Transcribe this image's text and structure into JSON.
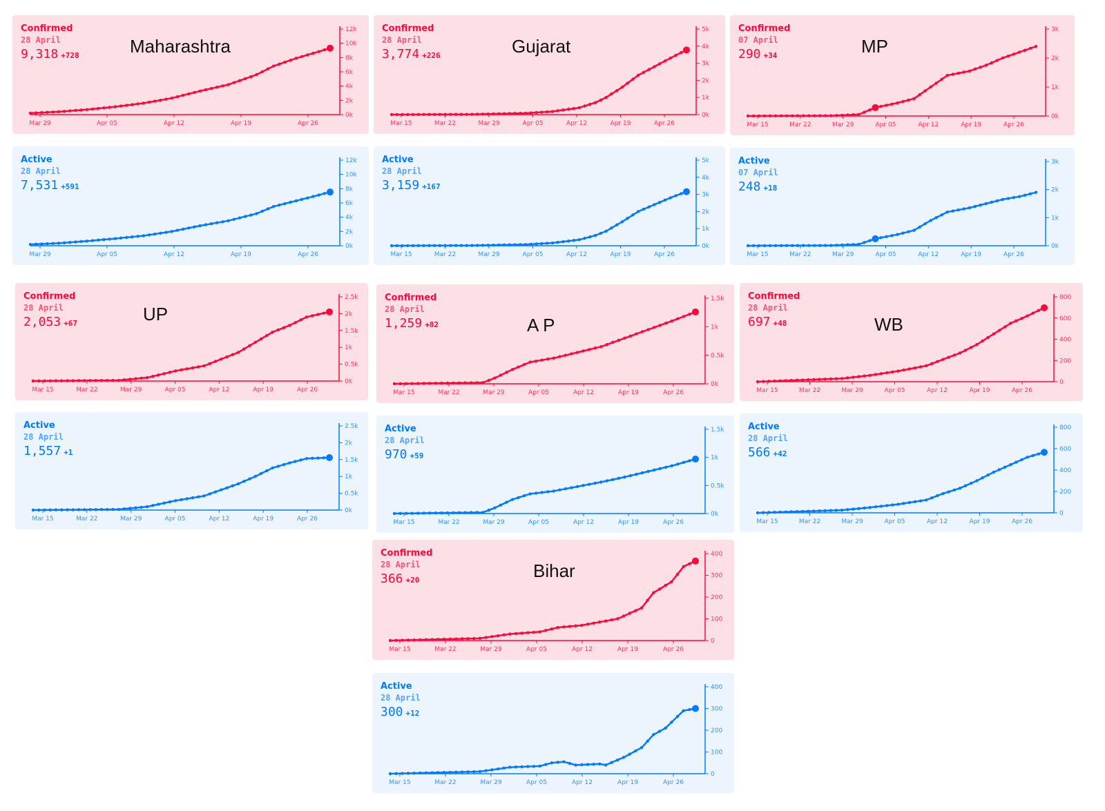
{
  "colors": {
    "confirmed": "#ff073a",
    "confirmed_bg": "#fde0e6",
    "active": "#007bff",
    "active_bg": "#ecf5fd"
  },
  "chart_data": [
    {
      "type": "line",
      "state": "Maharashtra",
      "label": "Confirmed",
      "date": "28 April",
      "value": "9,318",
      "delta": "+728",
      "x_ticks": [
        "Mar 29",
        "Apr 05",
        "Apr 12",
        "Apr 19",
        "Apr 26"
      ],
      "y_ticks": [
        "0k",
        "2k",
        "4k",
        "6k",
        "8k",
        "10k",
        "12k"
      ],
      "ylim": [
        0,
        12000
      ],
      "points": [
        [
          0,
          200
        ],
        [
          5,
          400
        ],
        [
          10,
          700
        ],
        [
          15,
          1100
        ],
        [
          20,
          1600
        ],
        [
          25,
          2300
        ],
        [
          30,
          3300
        ],
        [
          35,
          4200
        ],
        [
          40,
          5600
        ],
        [
          43,
          6800
        ],
        [
          47,
          7900
        ],
        [
          50,
          8600
        ],
        [
          53,
          9318
        ]
      ]
    },
    {
      "type": "line",
      "state": "Maharashtra",
      "label": "Active",
      "date": "28 April",
      "value": "7,531",
      "delta": "+591",
      "x_ticks": [
        "Mar 29",
        "Apr 05",
        "Apr 12",
        "Apr 19",
        "Apr 26"
      ],
      "y_ticks": [
        "0k",
        "2k",
        "4k",
        "6k",
        "8k",
        "10k",
        "12k"
      ],
      "ylim": [
        0,
        12000
      ],
      "points": [
        [
          0,
          180
        ],
        [
          5,
          350
        ],
        [
          10,
          650
        ],
        [
          15,
          1000
        ],
        [
          20,
          1400
        ],
        [
          25,
          2000
        ],
        [
          30,
          2800
        ],
        [
          35,
          3500
        ],
        [
          40,
          4500
        ],
        [
          43,
          5500
        ],
        [
          47,
          6300
        ],
        [
          50,
          6900
        ],
        [
          53,
          7531
        ]
      ]
    },
    {
      "type": "line",
      "state": "Gujarat",
      "label": "Confirmed",
      "date": "28 April",
      "value": "3,774",
      "delta": "+226",
      "x_ticks": [
        "Mar 15",
        "Mar 22",
        "Mar 29",
        "Apr 05",
        "Apr 12",
        "Apr 19",
        "Apr 26"
      ],
      "y_ticks": [
        "0k",
        "1k",
        "2k",
        "3k",
        "4k",
        "5k"
      ],
      "ylim": [
        0,
        5000
      ],
      "points": [
        [
          0,
          0
        ],
        [
          15,
          15
        ],
        [
          25,
          80
        ],
        [
          30,
          180
        ],
        [
          35,
          400
        ],
        [
          38,
          700
        ],
        [
          40,
          1000
        ],
        [
          43,
          1600
        ],
        [
          46,
          2300
        ],
        [
          49,
          2800
        ],
        [
          52,
          3300
        ],
        [
          55,
          3774
        ]
      ]
    },
    {
      "type": "line",
      "state": "Gujarat",
      "label": "Active",
      "date": "28 April",
      "value": "3,159",
      "delta": "+167",
      "x_ticks": [
        "Mar 15",
        "Mar 22",
        "Mar 29",
        "Apr 05",
        "Apr 12",
        "Apr 19",
        "Apr 26"
      ],
      "y_ticks": [
        "0k",
        "1k",
        "2k",
        "3k",
        "4k",
        "5k"
      ],
      "ylim": [
        0,
        5000
      ],
      "points": [
        [
          0,
          0
        ],
        [
          15,
          15
        ],
        [
          25,
          70
        ],
        [
          30,
          160
        ],
        [
          35,
          350
        ],
        [
          38,
          600
        ],
        [
          40,
          850
        ],
        [
          43,
          1400
        ],
        [
          46,
          2000
        ],
        [
          49,
          2400
        ],
        [
          52,
          2800
        ],
        [
          55,
          3159
        ]
      ]
    },
    {
      "type": "line",
      "state": "MP",
      "label": "Confirmed",
      "date": "07 April",
      "value": "290",
      "delta": "+34",
      "x_ticks": [
        "Mar 15",
        "Mar 22",
        "Mar 29",
        "Apr 05",
        "Apr 12",
        "Apr 19",
        "Apr 26"
      ],
      "y_ticks": [
        "0k",
        "1k",
        "2k",
        "3k"
      ],
      "ylim": [
        0,
        3000
      ],
      "points": [
        [
          0,
          0
        ],
        [
          15,
          10
        ],
        [
          20,
          50
        ],
        [
          23,
          290
        ],
        [
          27,
          450
        ],
        [
          30,
          600
        ],
        [
          33,
          1000
        ],
        [
          36,
          1400
        ],
        [
          40,
          1550
        ],
        [
          43,
          1750
        ],
        [
          46,
          2000
        ],
        [
          49,
          2200
        ],
        [
          52,
          2400
        ]
      ],
      "highlight": 3
    },
    {
      "type": "line",
      "state": "MP",
      "label": "Active",
      "date": "07 April",
      "value": "248",
      "delta": "+18",
      "x_ticks": [
        "Mar 15",
        "Mar 22",
        "Mar 29",
        "Apr 05",
        "Apr 12",
        "Apr 19",
        "Apr 26"
      ],
      "y_ticks": [
        "0k",
        "1k",
        "2k",
        "3k"
      ],
      "ylim": [
        0,
        3000
      ],
      "points": [
        [
          0,
          0
        ],
        [
          15,
          10
        ],
        [
          20,
          50
        ],
        [
          23,
          248
        ],
        [
          27,
          400
        ],
        [
          30,
          550
        ],
        [
          33,
          900
        ],
        [
          36,
          1200
        ],
        [
          40,
          1350
        ],
        [
          43,
          1500
        ],
        [
          46,
          1650
        ],
        [
          49,
          1750
        ],
        [
          52,
          1900
        ]
      ],
      "highlight": 3
    },
    {
      "type": "line",
      "state": "UP",
      "label": "Confirmed",
      "date": "28 April",
      "value": "2,053",
      "delta": "+67",
      "x_ticks": [
        "Mar 15",
        "Mar 22",
        "Mar 29",
        "Apr 05",
        "Apr 12",
        "Apr 19",
        "Apr 26"
      ],
      "y_ticks": [
        "0k",
        "0.5k",
        "1k",
        "1.5k",
        "2k",
        "2.5k"
      ],
      "ylim": [
        0,
        2500
      ],
      "points": [
        [
          0,
          0
        ],
        [
          15,
          20
        ],
        [
          20,
          100
        ],
        [
          25,
          300
        ],
        [
          30,
          450
        ],
        [
          33,
          650
        ],
        [
          36,
          850
        ],
        [
          39,
          1150
        ],
        [
          42,
          1450
        ],
        [
          45,
          1650
        ],
        [
          48,
          1900
        ],
        [
          52,
          2053
        ]
      ]
    },
    {
      "type": "line",
      "state": "UP",
      "label": "Active",
      "date": "28 April",
      "value": "1,557",
      "delta": "+1",
      "x_ticks": [
        "Mar 15",
        "Mar 22",
        "Mar 29",
        "Apr 05",
        "Apr 12",
        "Apr 19",
        "Apr 26"
      ],
      "y_ticks": [
        "0k",
        "0.5k",
        "1k",
        "1.5k",
        "2k",
        "2.5k"
      ],
      "ylim": [
        0,
        2500
      ],
      "points": [
        [
          0,
          0
        ],
        [
          15,
          20
        ],
        [
          20,
          100
        ],
        [
          25,
          280
        ],
        [
          30,
          420
        ],
        [
          33,
          600
        ],
        [
          36,
          780
        ],
        [
          39,
          1000
        ],
        [
          42,
          1250
        ],
        [
          45,
          1400
        ],
        [
          48,
          1530
        ],
        [
          52,
          1557
        ]
      ]
    },
    {
      "type": "line",
      "state": "A P",
      "label": "Confirmed",
      "date": "28 April",
      "value": "1,259",
      "delta": "+82",
      "x_ticks": [
        "Mar 15",
        "Mar 22",
        "Mar 29",
        "Apr 05",
        "Apr 12",
        "Apr 19",
        "Apr 26"
      ],
      "y_ticks": [
        "0k",
        "0.5k",
        "1k",
        "1.5k"
      ],
      "ylim": [
        0,
        1500
      ],
      "points": [
        [
          0,
          0
        ],
        [
          15,
          20
        ],
        [
          17,
          100
        ],
        [
          20,
          250
        ],
        [
          23,
          380
        ],
        [
          27,
          450
        ],
        [
          31,
          550
        ],
        [
          35,
          650
        ],
        [
          39,
          800
        ],
        [
          43,
          950
        ],
        [
          47,
          1100
        ],
        [
          51,
          1259
        ]
      ]
    },
    {
      "type": "line",
      "state": "A P",
      "label": "Active",
      "date": "28 April",
      "value": "970",
      "delta": "+59",
      "x_ticks": [
        "Mar 15",
        "Mar 22",
        "Mar 29",
        "Apr 05",
        "Apr 12",
        "Apr 19",
        "Apr 26"
      ],
      "y_ticks": [
        "0k",
        "0.5k",
        "1k",
        "1.5k"
      ],
      "ylim": [
        0,
        1500
      ],
      "points": [
        [
          0,
          0
        ],
        [
          15,
          20
        ],
        [
          17,
          100
        ],
        [
          20,
          250
        ],
        [
          23,
          350
        ],
        [
          27,
          400
        ],
        [
          31,
          480
        ],
        [
          35,
          560
        ],
        [
          39,
          650
        ],
        [
          43,
          750
        ],
        [
          47,
          850
        ],
        [
          51,
          970
        ]
      ]
    },
    {
      "type": "line",
      "state": "WB",
      "label": "Confirmed",
      "date": "28 April",
      "value": "697",
      "delta": "+48",
      "x_ticks": [
        "Mar 15",
        "Mar 22",
        "Mar 29",
        "Apr 05",
        "Apr 12",
        "Apr 19",
        "Apr 26"
      ],
      "y_ticks": [
        "0",
        "200",
        "400",
        "600",
        "800"
      ],
      "ylim": [
        0,
        800
      ],
      "points": [
        [
          0,
          0
        ],
        [
          15,
          30
        ],
        [
          20,
          60
        ],
        [
          25,
          100
        ],
        [
          30,
          150
        ],
        [
          33,
          210
        ],
        [
          36,
          270
        ],
        [
          39,
          350
        ],
        [
          42,
          450
        ],
        [
          45,
          550
        ],
        [
          48,
          620
        ],
        [
          51,
          697
        ]
      ]
    },
    {
      "type": "line",
      "state": "WB",
      "label": "Active",
      "date": "28 April",
      "value": "566",
      "delta": "+42",
      "x_ticks": [
        "Mar 15",
        "Mar 22",
        "Mar 29",
        "Apr 05",
        "Apr 12",
        "Apr 19",
        "Apr 26"
      ],
      "y_ticks": [
        "0",
        "200",
        "400",
        "600",
        "800"
      ],
      "ylim": [
        0,
        800
      ],
      "points": [
        [
          0,
          0
        ],
        [
          15,
          25
        ],
        [
          20,
          50
        ],
        [
          25,
          80
        ],
        [
          30,
          120
        ],
        [
          33,
          180
        ],
        [
          36,
          230
        ],
        [
          39,
          300
        ],
        [
          42,
          380
        ],
        [
          45,
          450
        ],
        [
          48,
          520
        ],
        [
          51,
          566
        ]
      ]
    },
    {
      "type": "line",
      "state": "Bihar",
      "label": "Confirmed",
      "date": "28 April",
      "value": "366",
      "delta": "+20",
      "x_ticks": [
        "Mar 15",
        "Mar 22",
        "Mar 29",
        "Apr 05",
        "Apr 12",
        "Apr 19",
        "Apr 26"
      ],
      "y_ticks": [
        "0",
        "100",
        "200",
        "300",
        "400"
      ],
      "ylim": [
        0,
        400
      ],
      "points": [
        [
          0,
          0
        ],
        [
          15,
          10
        ],
        [
          20,
          30
        ],
        [
          25,
          40
        ],
        [
          28,
          60
        ],
        [
          32,
          70
        ],
        [
          35,
          85
        ],
        [
          38,
          100
        ],
        [
          42,
          150
        ],
        [
          44,
          220
        ],
        [
          47,
          270
        ],
        [
          49,
          340
        ],
        [
          51,
          366
        ]
      ]
    },
    {
      "type": "line",
      "state": "Bihar",
      "label": "Active",
      "date": "28 April",
      "value": "300",
      "delta": "+12",
      "x_ticks": [
        "Mar 15",
        "Mar 22",
        "Mar 29",
        "Apr 05",
        "Apr 12",
        "Apr 19",
        "Apr 26"
      ],
      "y_ticks": [
        "0",
        "100",
        "200",
        "300",
        "400"
      ],
      "ylim": [
        0,
        400
      ],
      "points": [
        [
          0,
          0
        ],
        [
          15,
          10
        ],
        [
          20,
          30
        ],
        [
          25,
          35
        ],
        [
          27,
          50
        ],
        [
          29,
          55
        ],
        [
          31,
          40
        ],
        [
          35,
          45
        ],
        [
          36,
          40
        ],
        [
          39,
          75
        ],
        [
          42,
          120
        ],
        [
          44,
          180
        ],
        [
          46,
          210
        ],
        [
          49,
          290
        ],
        [
          51,
          300
        ]
      ]
    }
  ]
}
